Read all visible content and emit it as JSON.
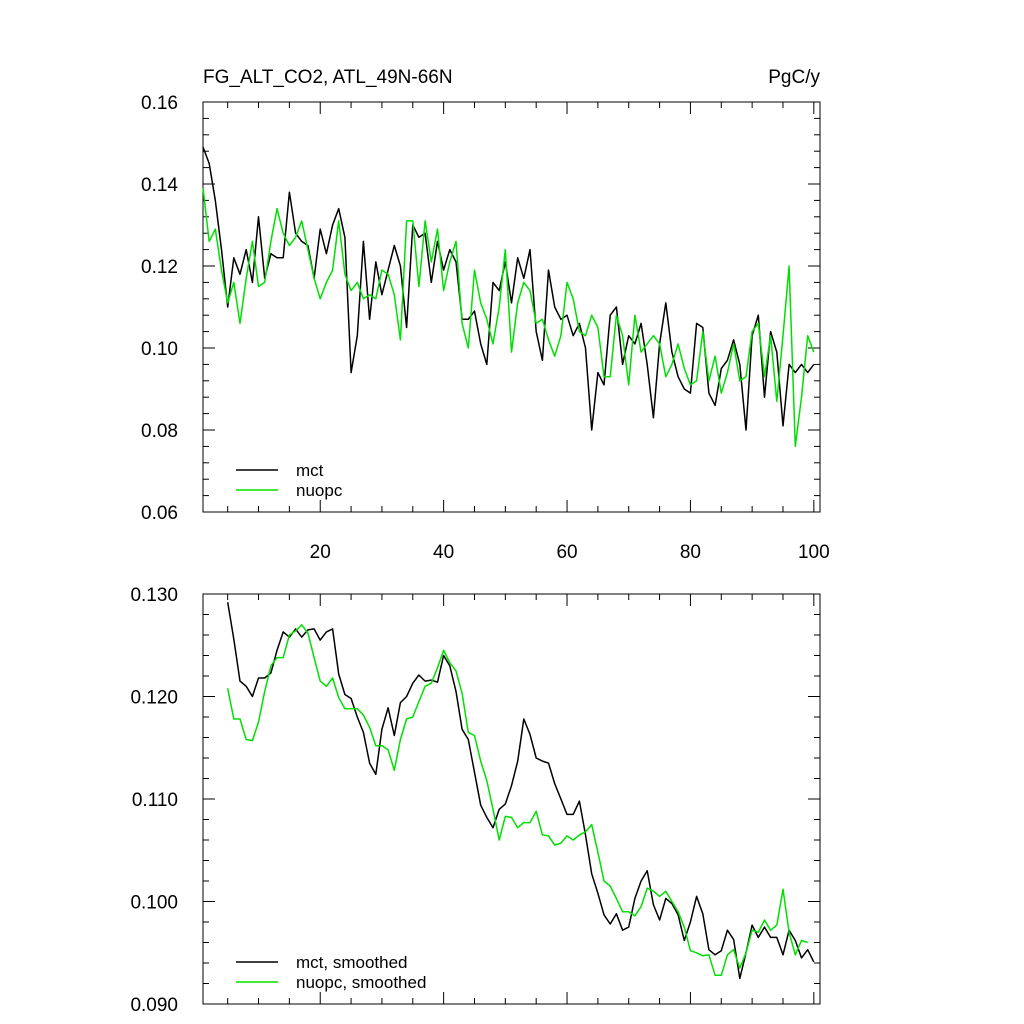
{
  "colors": {
    "mct": "#000000",
    "nuopc": "#00e000",
    "axis": "#000000"
  },
  "chart_data": [
    {
      "type": "line",
      "title": "FG_ALT_CO2, ATL_49N-66N",
      "units": "PgC/y",
      "xlim": [
        1,
        101
      ],
      "ylim": [
        0.06,
        0.16
      ],
      "xticks": [
        "20",
        "40",
        "60",
        "80",
        "100"
      ],
      "xtick_values": [
        20,
        40,
        60,
        80,
        100
      ],
      "yticks": [
        "0.06",
        "0.08",
        "0.10",
        "0.12",
        "0.14",
        "0.16"
      ],
      "ytick_values": [
        0.06,
        0.08,
        0.1,
        0.12,
        0.14,
        0.16
      ],
      "legend": "bottom-left",
      "x_start": 1,
      "series": [
        {
          "name": "mct",
          "color": "#000000",
          "values": [
            0.149,
            0.145,
            0.136,
            0.124,
            0.11,
            0.122,
            0.118,
            0.124,
            0.116,
            0.132,
            0.117,
            0.123,
            0.122,
            0.122,
            0.138,
            0.128,
            0.126,
            0.125,
            0.117,
            0.129,
            0.123,
            0.13,
            0.134,
            0.127,
            0.094,
            0.103,
            0.126,
            0.107,
            0.121,
            0.113,
            0.119,
            0.125,
            0.12,
            0.105,
            0.13,
            0.127,
            0.128,
            0.116,
            0.126,
            0.119,
            0.124,
            0.121,
            0.107,
            0.107,
            0.109,
            0.101,
            0.096,
            0.116,
            0.114,
            0.121,
            0.111,
            0.122,
            0.117,
            0.124,
            0.104,
            0.097,
            0.119,
            0.11,
            0.107,
            0.108,
            0.103,
            0.106,
            0.1,
            0.08,
            0.094,
            0.091,
            0.108,
            0.11,
            0.096,
            0.103,
            0.101,
            0.106,
            0.096,
            0.083,
            0.101,
            0.111,
            0.099,
            0.093,
            0.09,
            0.089,
            0.106,
            0.105,
            0.089,
            0.086,
            0.095,
            0.097,
            0.102,
            0.096,
            0.08,
            0.103,
            0.108,
            0.088,
            0.104,
            0.099,
            0.081,
            0.096,
            0.094,
            0.096,
            0.094,
            0.096
          ]
        },
        {
          "name": "nuopc",
          "color": "#00e000",
          "values": [
            0.139,
            0.126,
            0.129,
            0.119,
            0.111,
            0.116,
            0.106,
            0.117,
            0.126,
            0.115,
            0.116,
            0.126,
            0.134,
            0.128,
            0.125,
            0.127,
            0.131,
            0.124,
            0.117,
            0.112,
            0.116,
            0.119,
            0.131,
            0.118,
            0.114,
            0.116,
            0.112,
            0.113,
            0.112,
            0.119,
            0.118,
            0.113,
            0.102,
            0.131,
            0.131,
            0.115,
            0.131,
            0.121,
            0.129,
            0.114,
            0.121,
            0.126,
            0.106,
            0.1,
            0.119,
            0.111,
            0.107,
            0.101,
            0.11,
            0.124,
            0.099,
            0.111,
            0.116,
            0.114,
            0.106,
            0.107,
            0.102,
            0.098,
            0.103,
            0.116,
            0.112,
            0.104,
            0.103,
            0.108,
            0.105,
            0.093,
            0.093,
            0.108,
            0.103,
            0.091,
            0.108,
            0.099,
            0.101,
            0.103,
            0.101,
            0.093,
            0.096,
            0.101,
            0.095,
            0.091,
            0.092,
            0.104,
            0.092,
            0.098,
            0.089,
            0.094,
            0.101,
            0.092,
            0.093,
            0.104,
            0.106,
            0.093,
            0.103,
            0.087,
            0.103,
            0.12,
            0.076,
            0.088,
            0.103,
            0.099
          ]
        }
      ]
    },
    {
      "type": "line",
      "title": "",
      "xlim": [
        1,
        101
      ],
      "ylim": [
        0.09,
        0.13
      ],
      "xtick_values": [
        20,
        40,
        60,
        80,
        100
      ],
      "yticks": [
        "0.090",
        "0.100",
        "0.110",
        "0.120",
        "0.130"
      ],
      "ytick_values": [
        0.09,
        0.1,
        0.11,
        0.12,
        0.13
      ],
      "legend": "bottom-left",
      "x_start": 5,
      "series": [
        {
          "name": "mct, smoothed",
          "color": "#000000",
          "values": [
            0.1292,
            0.1256,
            0.1215,
            0.121,
            0.12,
            0.1218,
            0.1218,
            0.1223,
            0.1245,
            0.1263,
            0.1258,
            0.1266,
            0.1258,
            0.1265,
            0.1266,
            0.1255,
            0.1263,
            0.1266,
            0.1222,
            0.1202,
            0.1198,
            0.118,
            0.1165,
            0.1135,
            0.1124,
            0.1168,
            0.1189,
            0.1162,
            0.1194,
            0.12,
            0.1213,
            0.1221,
            0.1215,
            0.1216,
            0.1214,
            0.124,
            0.123,
            0.1205,
            0.1168,
            0.1158,
            0.1126,
            0.1094,
            0.1082,
            0.1072,
            0.109,
            0.1095,
            0.1113,
            0.1137,
            0.1178,
            0.1163,
            0.114,
            0.1137,
            0.1135,
            0.1115,
            0.11,
            0.1085,
            0.1085,
            0.1098,
            0.1065,
            0.1027,
            0.1008,
            0.0987,
            0.0978,
            0.0988,
            0.0972,
            0.0975,
            0.1003,
            0.102,
            0.103,
            0.0997,
            0.0982,
            0.1003,
            0.0998,
            0.0987,
            0.0962,
            0.098,
            0.1005,
            0.0988,
            0.0953,
            0.0948,
            0.0952,
            0.0972,
            0.0963,
            0.0925,
            0.095,
            0.0977,
            0.0965,
            0.0975,
            0.0965,
            0.0965,
            0.0948,
            0.0972,
            0.0962,
            0.0945,
            0.0953,
            0.0941
          ]
        },
        {
          "name": "nuopc, smoothed",
          "color": "#00e000",
          "values": [
            0.1208,
            0.1178,
            0.1178,
            0.1158,
            0.1157,
            0.1175,
            0.1205,
            0.123,
            0.1238,
            0.1238,
            0.126,
            0.1264,
            0.127,
            0.1262,
            0.1238,
            0.1215,
            0.121,
            0.1218,
            0.1199,
            0.1188,
            0.1188,
            0.1188,
            0.1182,
            0.117,
            0.1152,
            0.1152,
            0.1148,
            0.1128,
            0.1158,
            0.1178,
            0.118,
            0.1195,
            0.121,
            0.1213,
            0.1228,
            0.1245,
            0.1233,
            0.1225,
            0.1203,
            0.1165,
            0.1162,
            0.1137,
            0.1118,
            0.109,
            0.106,
            0.1083,
            0.1082,
            0.1072,
            0.1077,
            0.1077,
            0.1088,
            0.1065,
            0.1064,
            0.1055,
            0.1057,
            0.1064,
            0.106,
            0.1065,
            0.1068,
            0.1075,
            0.1048,
            0.102,
            0.1015,
            0.1003,
            0.099,
            0.099,
            0.0986,
            0.0995,
            0.1013,
            0.101,
            0.1005,
            0.101,
            0.1,
            0.099,
            0.0975,
            0.0952,
            0.095,
            0.0947,
            0.0948,
            0.0928,
            0.0928,
            0.0948,
            0.0953,
            0.0935,
            0.095,
            0.0972,
            0.097,
            0.0982,
            0.0972,
            0.0977,
            0.1012,
            0.097,
            0.0948,
            0.0962,
            0.096
          ]
        }
      ]
    }
  ]
}
